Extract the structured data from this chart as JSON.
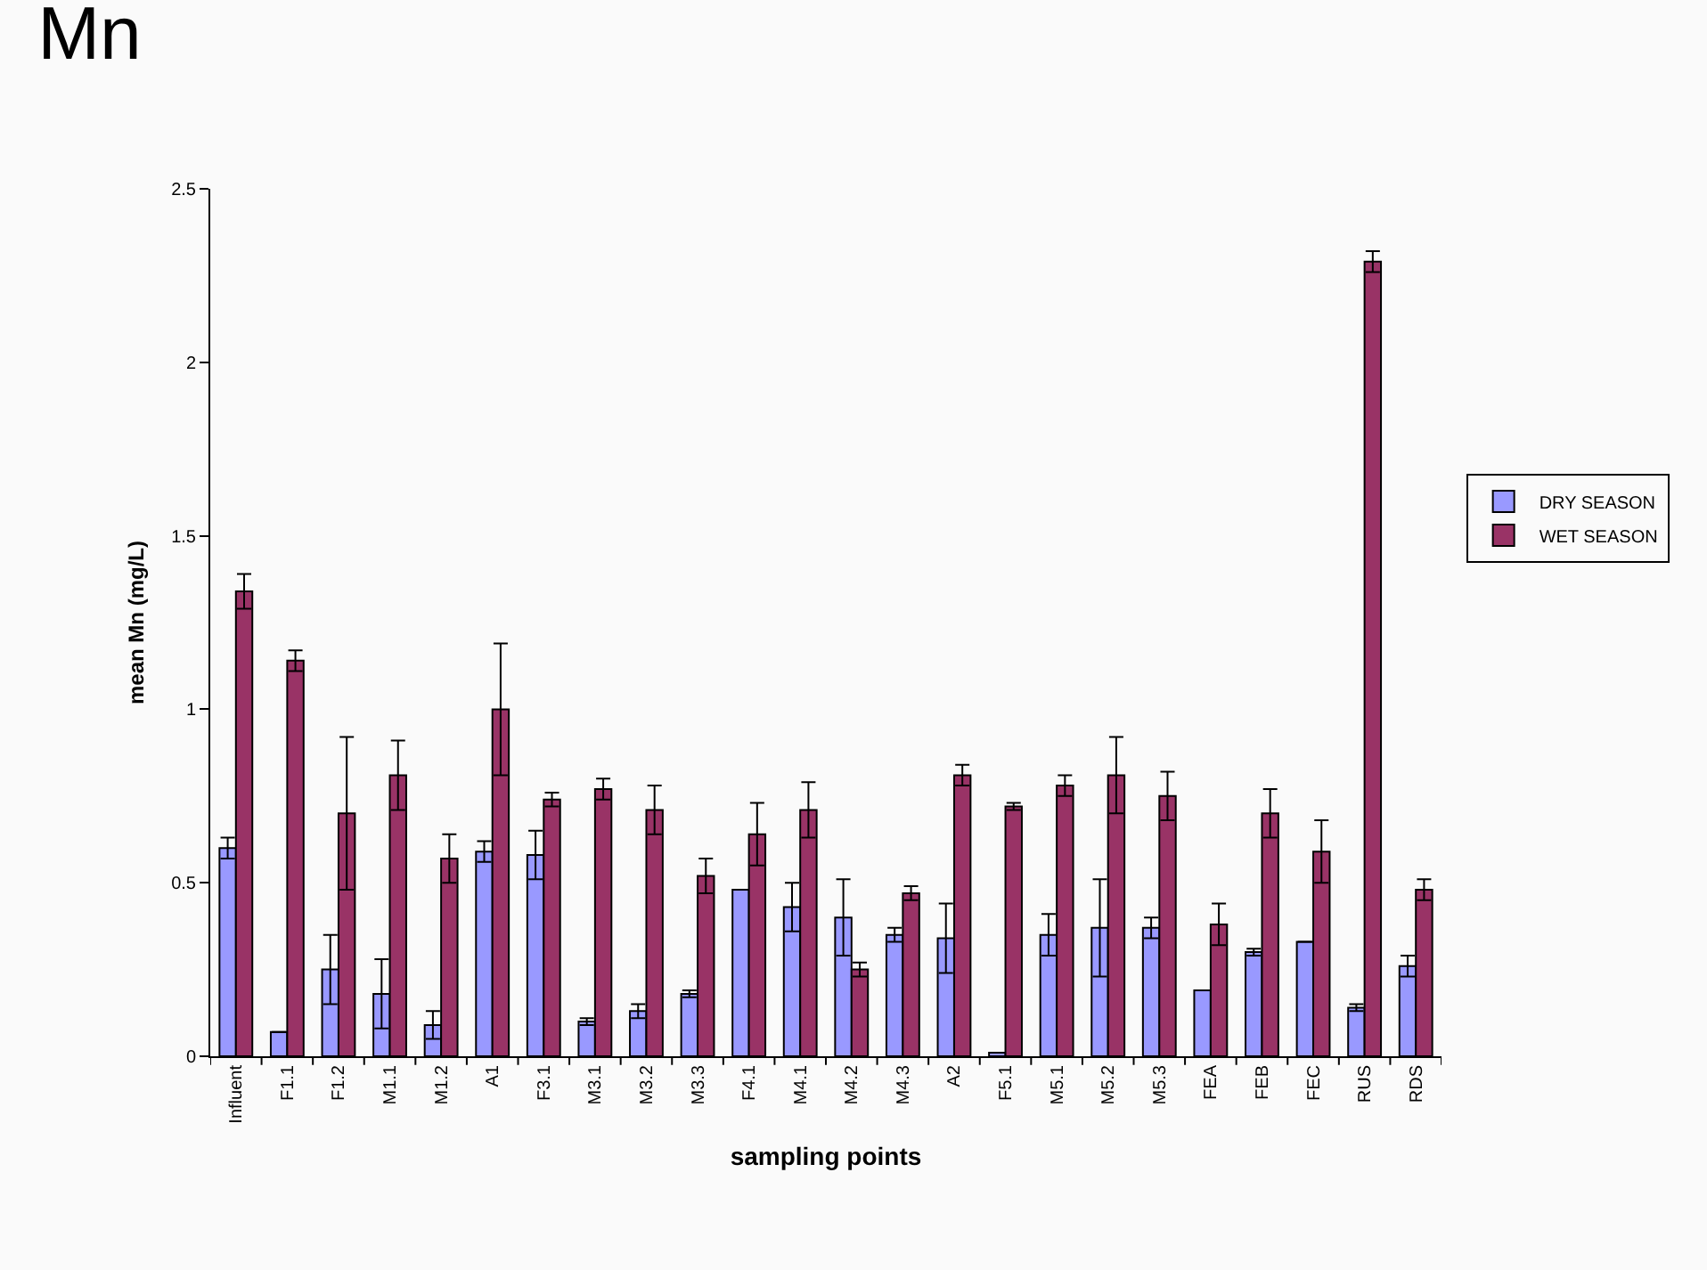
{
  "chart_data": {
    "type": "bar",
    "title": "Mn",
    "xlabel": "sampling points",
    "ylabel": "mean Mn (mg/L)",
    "categories": [
      "Influent",
      "F1.1",
      "F1.2",
      "M1.1",
      "M1.2",
      "A1",
      "F3.1",
      "M3.1",
      "M3.2",
      "M3.3",
      "F4.1",
      "M4.1",
      "M4.2",
      "M4.3",
      "A2",
      "F5.1",
      "M5.1",
      "M5.2",
      "M5.3",
      "FEA",
      "FEB",
      "FEC",
      "RUS",
      "RDS"
    ],
    "series": [
      {
        "name": "DRY SEASON",
        "color": "#9999ff",
        "values": [
          0.6,
          0.07,
          0.25,
          0.18,
          0.09,
          0.59,
          0.58,
          0.1,
          0.13,
          0.18,
          0.48,
          0.43,
          0.4,
          0.35,
          0.34,
          0.01,
          0.35,
          0.37,
          0.37,
          0.19,
          0.3,
          0.33,
          0.14,
          0.26
        ],
        "errors": [
          0.03,
          null,
          0.1,
          0.1,
          0.04,
          0.03,
          0.07,
          0.01,
          0.02,
          0.01,
          null,
          0.07,
          0.11,
          0.02,
          0.1,
          null,
          0.06,
          0.14,
          0.03,
          null,
          0.01,
          null,
          0.01,
          0.03
        ]
      },
      {
        "name": "WET SEASON",
        "color": "#993366",
        "values": [
          1.34,
          1.14,
          0.7,
          0.81,
          0.57,
          1.0,
          0.74,
          0.77,
          0.71,
          0.52,
          0.64,
          0.71,
          0.25,
          0.47,
          0.81,
          0.72,
          0.78,
          0.81,
          0.75,
          0.38,
          0.7,
          0.59,
          2.29,
          0.48
        ],
        "errors": [
          0.05,
          0.03,
          0.22,
          0.1,
          0.07,
          0.19,
          0.02,
          0.03,
          0.07,
          0.05,
          0.09,
          0.08,
          0.02,
          0.02,
          0.03,
          0.01,
          0.03,
          0.11,
          0.07,
          0.06,
          0.07,
          0.09,
          0.03,
          0.03
        ]
      }
    ],
    "ylim": [
      0,
      2.5
    ],
    "yticks": [
      0,
      0.5,
      1,
      1.5,
      2,
      2.5
    ],
    "legend": "right"
  }
}
